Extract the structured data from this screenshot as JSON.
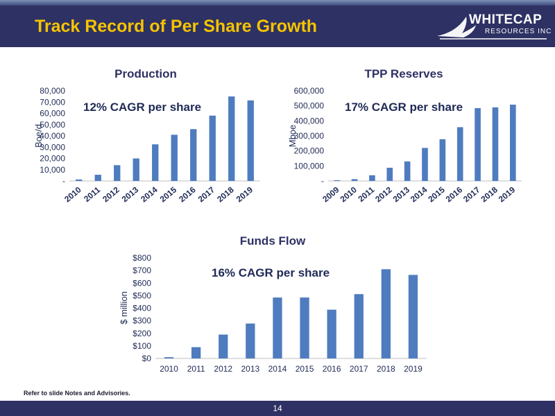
{
  "header": {
    "title": "Track Record of Per Share Growth",
    "logo_line1": "WHITECAP",
    "logo_line2": "RESOURCES INC",
    "bg_color": "#2e3163",
    "title_color": "#f5c400"
  },
  "footnote": "Refer to slide Notes and Advisories.",
  "page_number": "14",
  "bar_color": "#4f7cbf",
  "chart_data": [
    {
      "type": "bar",
      "title": "Production",
      "annotation": "12% CAGR per share",
      "ylabel": "Boe/d",
      "categories": [
        "2010",
        "2011",
        "2012",
        "2013",
        "2014",
        "2015",
        "2016",
        "2017",
        "2018",
        "2019"
      ],
      "values": [
        1300,
        5500,
        14000,
        20000,
        32500,
        41000,
        46000,
        58000,
        75000,
        71500
      ],
      "ylim": [
        0,
        80000
      ],
      "yticks": [
        "-",
        "10,000",
        "20,000",
        "30,000",
        "40,000",
        "50,000",
        "60,000",
        "70,000",
        "80,000"
      ],
      "grid": false
    },
    {
      "type": "bar",
      "title": "TPP Reserves",
      "annotation": "17% CAGR per share",
      "ylabel": "Mboe",
      "categories": [
        "2009",
        "2010",
        "2011",
        "2012",
        "2013",
        "2014",
        "2015",
        "2016",
        "2017",
        "2018",
        "2019"
      ],
      "values": [
        5000,
        12000,
        38000,
        88000,
        130000,
        220000,
        278000,
        358000,
        485000,
        490000,
        508000
      ],
      "ylim": [
        0,
        600000
      ],
      "yticks": [
        "-",
        "100,000",
        "200,000",
        "300,000",
        "400,000",
        "500,000",
        "600,000"
      ],
      "grid": false
    },
    {
      "type": "bar",
      "title": "Funds Flow",
      "annotation": "16% CAGR per share",
      "ylabel": "$ million",
      "categories": [
        "2010",
        "2011",
        "2012",
        "2013",
        "2014",
        "2015",
        "2016",
        "2017",
        "2018",
        "2019"
      ],
      "values": [
        10,
        90,
        190,
        278,
        485,
        485,
        388,
        512,
        710,
        665
      ],
      "ylim": [
        0,
        800
      ],
      "yticks": [
        "$0",
        "$100",
        "$200",
        "$300",
        "$400",
        "$500",
        "$600",
        "$700",
        "$800"
      ],
      "grid": false
    }
  ]
}
